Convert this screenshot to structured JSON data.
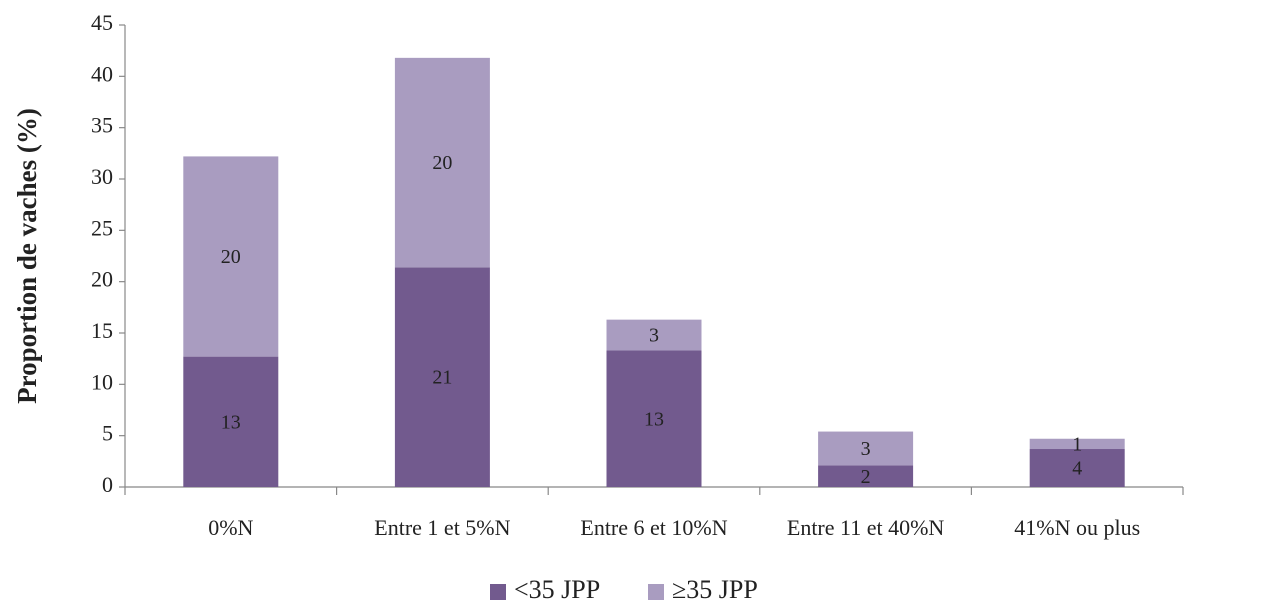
{
  "chart_data": {
    "type": "stacked_bar",
    "y_label": "Proportion de vaches (%)",
    "categories": [
      "0%N",
      "Entre 1 et 5%N",
      "Entre 6 et 10%N",
      "Entre 11 et 40%N",
      "41%N ou plus"
    ],
    "series": [
      {
        "name": "<35 JPP",
        "color": "#725a8e",
        "values": [
          12.7,
          21.4,
          13.3,
          2.1,
          3.7
        ],
        "value_labels": [
          "13",
          "21",
          "13",
          "2",
          "4"
        ]
      },
      {
        "name": "≥35 JPP",
        "color": "#a99cc0",
        "values": [
          19.5,
          20.4,
          3.0,
          3.3,
          1.0
        ],
        "value_labels": [
          "20",
          "20",
          "3",
          "3",
          "1"
        ]
      }
    ],
    "ylim": [
      0,
      45
    ],
    "yticks": [
      0,
      5,
      10,
      15,
      20,
      25,
      30,
      35,
      40,
      45
    ]
  }
}
